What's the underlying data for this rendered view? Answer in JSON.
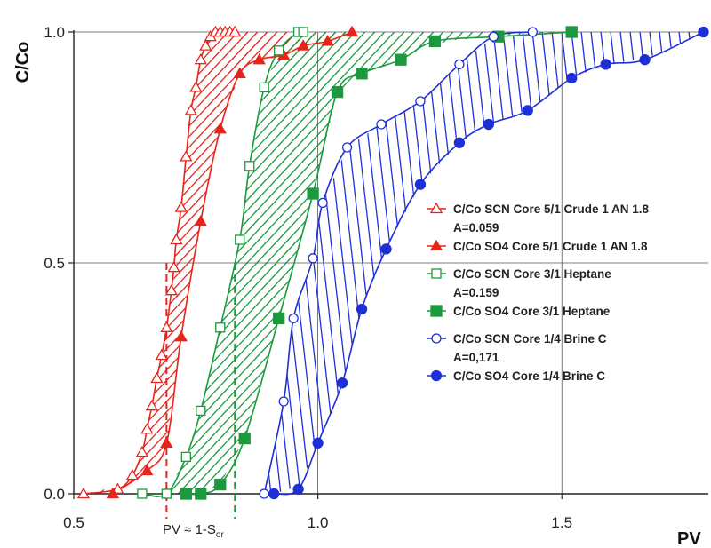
{
  "chart_data": {
    "type": "line",
    "xlabel": "PV",
    "ylabel": "C/Co",
    "xlim": [
      0.5,
      1.8
    ],
    "ylim": [
      0,
      1.0
    ],
    "x_ticks": [
      "0.5",
      "1.0",
      "1.5"
    ],
    "x_tick_values": [
      0.5,
      1.0,
      1.5
    ],
    "y_ticks": [
      "0.0",
      "0.5",
      "1.0"
    ],
    "y_tick_values": [
      0.0,
      0.5,
      1.0
    ],
    "grid": true,
    "legend_position": "right",
    "annotation": {
      "text": "PV ≈ 1-S",
      "subscript": "or"
    },
    "vertical_markers": [
      {
        "x": 0.69,
        "y": 0.5,
        "color": "#e8231a"
      },
      {
        "x": 0.83,
        "y": 0.5,
        "color": "#1a9a3c"
      }
    ],
    "pairs": [
      {
        "scn": 0,
        "so4": 1,
        "color": "#e8231a",
        "area_label": "A=0.059"
      },
      {
        "scn": 2,
        "so4": 3,
        "color": "#1a9a3c",
        "area_label": "A=0.159"
      },
      {
        "scn": 4,
        "so4": 5,
        "color": "#1f2fd6",
        "area_label": "A=0,171"
      }
    ],
    "series": [
      {
        "name": "C/Co SCN Core 5/1 Crude 1 AN 1.8",
        "color": "#e8231a",
        "marker": "triangle-open",
        "x": [
          0.52,
          0.59,
          0.62,
          0.64,
          0.65,
          0.66,
          0.67,
          0.68,
          0.69,
          0.7,
          0.705,
          0.71,
          0.72,
          0.73,
          0.74,
          0.75,
          0.76,
          0.77,
          0.78,
          0.79,
          0.8,
          0.81,
          0.82,
          0.83
        ],
        "y": [
          0.0,
          0.01,
          0.04,
          0.09,
          0.14,
          0.19,
          0.25,
          0.3,
          0.36,
          0.44,
          0.49,
          0.55,
          0.62,
          0.73,
          0.83,
          0.88,
          0.94,
          0.97,
          0.99,
          1.0,
          1.0,
          1.0,
          1.0,
          1.0
        ]
      },
      {
        "name": "C/Co SO4 Core 5/1 Crude 1 AN 1.8",
        "color": "#e8231a",
        "marker": "triangle-filled",
        "x": [
          0.58,
          0.65,
          0.69,
          0.72,
          0.76,
          0.8,
          0.84,
          0.88,
          0.93,
          0.97,
          1.02,
          1.07
        ],
        "y": [
          0.0,
          0.05,
          0.11,
          0.34,
          0.59,
          0.79,
          0.91,
          0.94,
          0.95,
          0.97,
          0.98,
          1.0
        ]
      },
      {
        "name": "C/Co SCN Core 3/1 Heptane",
        "color": "#1a9a3c",
        "marker": "square-open",
        "x": [
          0.64,
          0.69,
          0.73,
          0.76,
          0.8,
          0.84,
          0.86,
          0.89,
          0.92,
          0.96,
          0.97
        ],
        "y": [
          0.0,
          0.0,
          0.08,
          0.18,
          0.36,
          0.55,
          0.71,
          0.88,
          0.96,
          1.0,
          1.0
        ]
      },
      {
        "name": "C/Co SO4 Core 3/1 Heptane",
        "color": "#1a9a3c",
        "marker": "square-filled",
        "x": [
          0.73,
          0.76,
          0.8,
          0.85,
          0.92,
          0.99,
          1.04,
          1.09,
          1.17,
          1.24,
          1.37,
          1.52
        ],
        "y": [
          0.0,
          0.0,
          0.02,
          0.12,
          0.38,
          0.65,
          0.87,
          0.91,
          0.94,
          0.98,
          0.99,
          1.0
        ]
      },
      {
        "name": "C/Co SCN Core 1/4 Brine C",
        "color": "#1f2fd6",
        "marker": "circle-open",
        "x": [
          0.89,
          0.93,
          0.95,
          0.99,
          1.01,
          1.06,
          1.13,
          1.21,
          1.29,
          1.36,
          1.44
        ],
        "y": [
          0.0,
          0.2,
          0.38,
          0.51,
          0.63,
          0.75,
          0.8,
          0.85,
          0.93,
          0.99,
          1.0
        ]
      },
      {
        "name": "C/Co SO4 Core 1/4 Brine C",
        "color": "#1f2fd6",
        "marker": "circle-filled",
        "x": [
          0.91,
          0.96,
          1.0,
          1.05,
          1.09,
          1.14,
          1.21,
          1.29,
          1.35,
          1.43,
          1.52,
          1.59,
          1.67,
          1.79
        ],
        "y": [
          0.0,
          0.01,
          0.11,
          0.24,
          0.4,
          0.53,
          0.67,
          0.76,
          0.8,
          0.83,
          0.9,
          0.93,
          0.94,
          1.0
        ]
      }
    ]
  }
}
